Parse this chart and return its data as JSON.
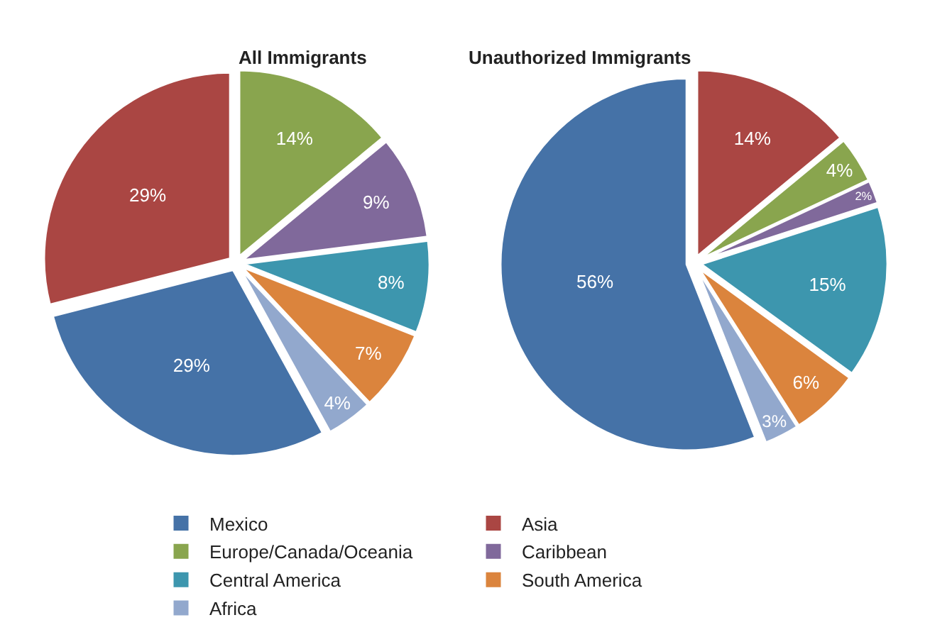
{
  "chart_data": [
    {
      "type": "pie",
      "title": "All Immigrants",
      "legend": "bottom",
      "categories": [
        "Mexico",
        "Asia",
        "Europe/Canada/Oceania",
        "Caribbean",
        "Central America",
        "South America",
        "Africa"
      ],
      "values": [
        29,
        29,
        14,
        9,
        8,
        7,
        4
      ],
      "value_labels": [
        "29%",
        "29%",
        "14%",
        "9%",
        "8%",
        "7%",
        "4%"
      ],
      "colors": [
        "#4572a7",
        "#aa4643",
        "#89a54e",
        "#80699b",
        "#3d96ae",
        "#db843d",
        "#92a8cd"
      ]
    },
    {
      "type": "pie",
      "title": "Unauthorized Immigrants",
      "categories": [
        null,
        null,
        null,
        null,
        null,
        null,
        null
      ],
      "values": [
        56,
        14,
        4,
        2,
        15,
        6,
        3
      ],
      "value_labels": [
        "56%",
        "14%",
        "4%",
        "2%",
        "15%",
        "6%",
        "3%"
      ],
      "colors": [
        "#4572a7",
        "#aa4643",
        "#89a54e",
        "#80699b",
        "#3d96ae",
        "#db843d",
        "#92a8cd"
      ]
    }
  ]
}
